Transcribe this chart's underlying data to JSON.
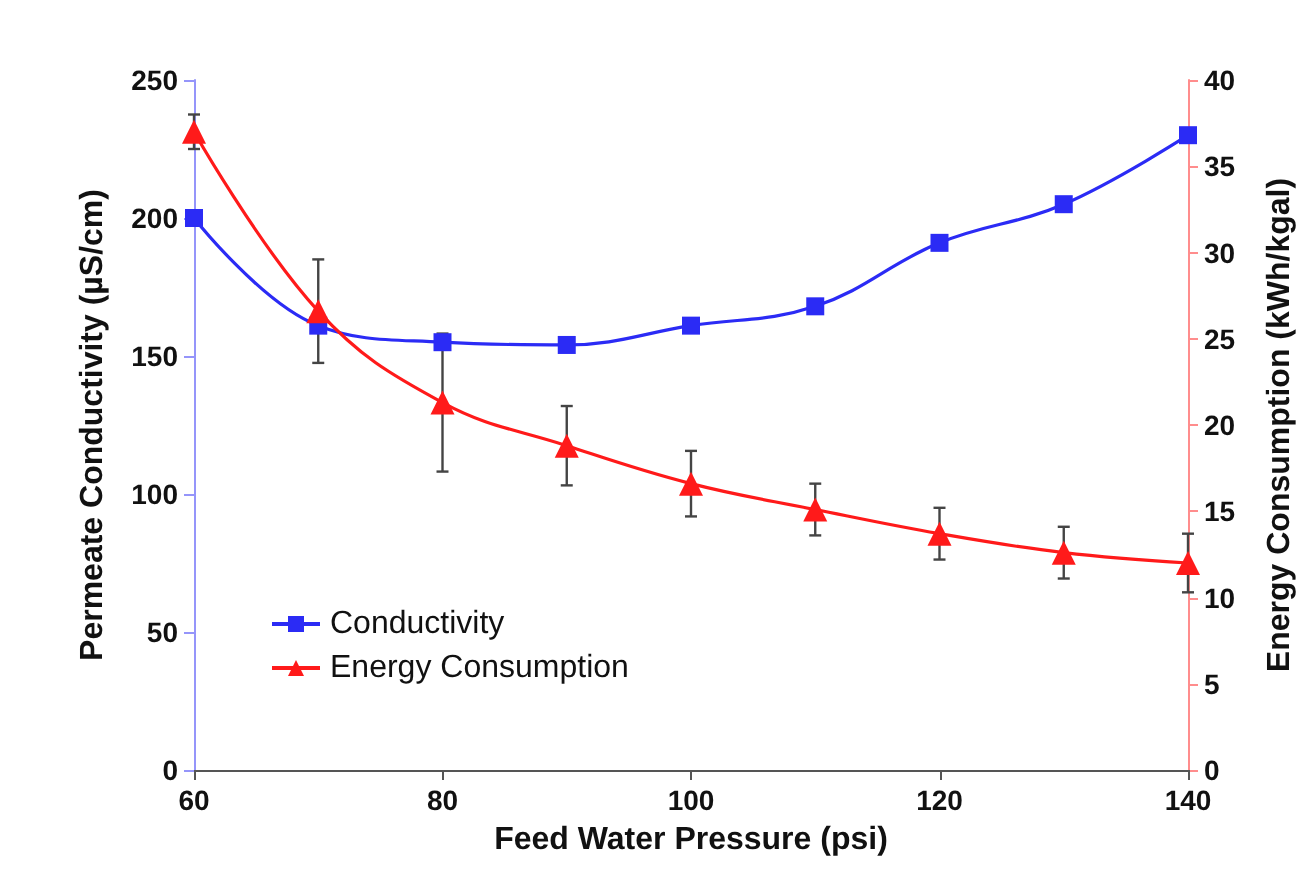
{
  "chart_data": {
    "type": "line",
    "xlabel": "Feed Water Pressure (psi)",
    "ylabel": "Permeate Conductivity (µS/cm)",
    "y2label": "Energy Consumption (kWh/kgal)",
    "x": [
      60,
      70,
      80,
      90,
      100,
      110,
      120,
      130,
      140
    ],
    "xlim": [
      60,
      140
    ],
    "xticks": [
      60,
      80,
      100,
      120,
      140
    ],
    "ylim": [
      0,
      250
    ],
    "yticks": [
      0,
      50,
      100,
      150,
      200,
      250
    ],
    "y2lim": [
      0,
      40
    ],
    "y2ticks": [
      0,
      5,
      10,
      15,
      20,
      25,
      30,
      35,
      40
    ],
    "grid": false,
    "legend": "bottom left",
    "line_style": "solid",
    "series": [
      {
        "name": "Conductivity",
        "color": "#2b2bf5",
        "marker": "square",
        "values": [
          200,
          161,
          155,
          154,
          161,
          168,
          191,
          205,
          230
        ]
      },
      {
        "name": "Energy Consumption",
        "color": "#ff1a1a",
        "marker": "triangle",
        "axis": "y2",
        "values": [
          37.0,
          26.6,
          21.3,
          18.8,
          16.6,
          15.1,
          13.7,
          12.6,
          12.0
        ],
        "errors": [
          1.0,
          3.0,
          4.0,
          2.3,
          1.9,
          1.5,
          1.5,
          1.5,
          1.7
        ]
      }
    ]
  }
}
